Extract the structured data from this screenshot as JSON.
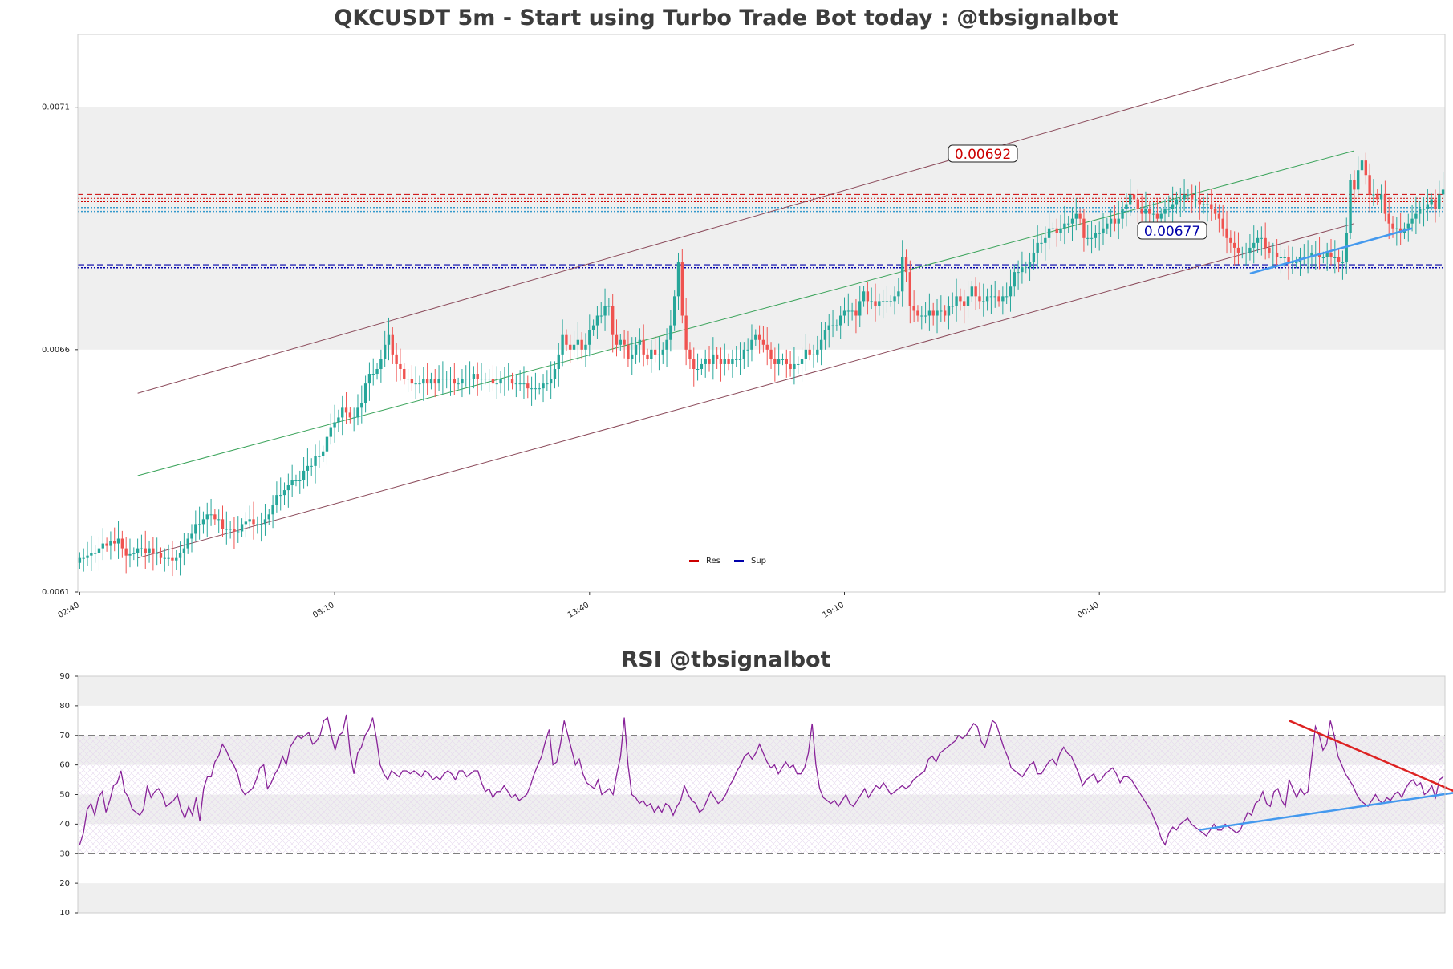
{
  "chart_data": [
    {
      "type": "candlestick",
      "title": "QKCUSDT 5m - Start using Turbo Trade Bot today : @tbsignalbot",
      "ylim": [
        0.0061,
        0.00725
      ],
      "y_ticks": [
        "0.0071",
        "0.0066",
        "0.0061"
      ],
      "y_tick_values": [
        0.0071,
        0.0066,
        0.0061
      ],
      "x_ticks": [
        "02:40",
        "08:10",
        "13:40",
        "19:10",
        "00:40"
      ],
      "x_tick_index": [
        0,
        66,
        132,
        198,
        264
      ],
      "shaded_band": [
        0.0066,
        0.0071
      ],
      "resistance": {
        "label": "0.00692",
        "value": 0.00692,
        "color": "#cc0000"
      },
      "support": {
        "label": "0.00677",
        "value": 0.00677,
        "color": "#0000aa"
      },
      "resistance_levels": [
        0.00692,
        0.006912,
        0.006905
      ],
      "support_levels": [
        0.006893,
        0.006885,
        0.006775,
        0.006769
      ],
      "channel": {
        "start_index": 15,
        "end_index": 330,
        "upper": [
          0.00651,
          0.00723
        ],
        "middle": [
          0.00634,
          0.00701
        ],
        "lower": [
          0.00617,
          0.00686
        ]
      },
      "trendline": {
        "x": [
          303,
          345
        ],
        "y": [
          0.006757,
          0.00685
        ],
        "color": "#4499ee"
      },
      "series": [
        {
          "name": "Res",
          "color": "#cc0000"
        },
        {
          "name": "Sup",
          "color": "#0000aa"
        }
      ],
      "candles_close": [
        0.00617,
        0.00617,
        0.006175,
        0.00618,
        0.00618,
        0.00619,
        0.0062,
        0.006195,
        0.006205,
        0.0062,
        0.00621,
        0.00619,
        0.006175,
        0.006178,
        0.00618,
        0.00619,
        0.00619,
        0.00618,
        0.00619,
        0.00618,
        0.00618,
        0.00617,
        0.00617,
        0.00617,
        0.006165,
        0.00617,
        0.00618,
        0.00619,
        0.00621,
        0.00622,
        0.00624,
        0.00624,
        0.00625,
        0.00626,
        0.00626,
        0.00625,
        0.00625,
        0.00623,
        0.00623,
        0.00623,
        0.006225,
        0.006225,
        0.00624,
        0.006245,
        0.00625,
        0.00624,
        0.00624,
        0.00624,
        0.00625,
        0.00626,
        0.00628,
        0.0063,
        0.0063,
        0.00631,
        0.00632,
        0.00633,
        0.00633,
        0.00633,
        0.00635,
        0.00636,
        0.00636,
        0.00638,
        0.00638,
        0.00639,
        0.00642,
        0.00644,
        0.00645,
        0.00646,
        0.00648,
        0.00647,
        0.00646,
        0.00646,
        0.00648,
        0.00649,
        0.00653,
        0.00655,
        0.00655,
        0.00656,
        0.00658,
        0.00661,
        0.00663,
        0.00659,
        0.00657,
        0.00656,
        0.00654,
        0.00654,
        0.00653,
        0.00653,
        0.00653,
        0.00654,
        0.00653,
        0.00654,
        0.00653,
        0.00654,
        0.00654,
        0.00654,
        0.00654,
        0.00653,
        0.00653,
        0.00654,
        0.00654,
        0.00654,
        0.00655,
        0.00654,
        0.00654,
        0.00654,
        0.00654,
        0.00653,
        0.00653,
        0.00654,
        0.00654,
        0.00654,
        0.00653,
        0.00653,
        0.00653,
        0.00653,
        0.00652,
        0.00652,
        0.00652,
        0.00652,
        0.00653,
        0.00653,
        0.00654,
        0.00656,
        0.00659,
        0.00663,
        0.00661,
        0.0066,
        0.00661,
        0.00662,
        0.0066,
        0.00661,
        0.00664,
        0.00665,
        0.00667,
        0.00667,
        0.00669,
        0.00669,
        0.00663,
        0.00661,
        0.00662,
        0.00661,
        0.00658,
        0.00659,
        0.00661,
        0.00662,
        0.00659,
        0.00658,
        0.0066,
        0.00659,
        0.00659,
        0.0066,
        0.00662,
        0.00665,
        0.00671,
        0.00678,
        0.00667,
        0.0066,
        0.00658,
        0.00656,
        0.00656,
        0.00657,
        0.00658,
        0.00657,
        0.00659,
        0.00658,
        0.00657,
        0.00658,
        0.00657,
        0.00658,
        0.00658,
        0.00658,
        0.0066,
        0.0066,
        0.00662,
        0.00663,
        0.00662,
        0.00661,
        0.0066,
        0.00658,
        0.00657,
        0.00658,
        0.00658,
        0.00657,
        0.00656,
        0.00657,
        0.00657,
        0.00658,
        0.0066,
        0.00659,
        0.00659,
        0.0066,
        0.00662,
        0.00664,
        0.00665,
        0.00665,
        0.00665,
        0.00667,
        0.00668,
        0.00668,
        0.00668,
        0.00667,
        0.0067,
        0.00672,
        0.0067,
        0.0067,
        0.00669,
        0.0067,
        0.0067,
        0.0067,
        0.0067,
        0.00671,
        0.00672,
        0.00679,
        0.00676,
        0.00669,
        0.00668,
        0.00667,
        0.00667,
        0.00667,
        0.00668,
        0.00667,
        0.00668,
        0.00668,
        0.00667,
        0.00669,
        0.00669,
        0.00671,
        0.0067,
        0.00669,
        0.00671,
        0.00673,
        0.00671,
        0.0067,
        0.0067,
        0.00671,
        0.00671,
        0.00671,
        0.0067,
        0.00671,
        0.00671,
        0.00673,
        0.00676,
        0.00676,
        0.00677,
        0.00677,
        0.00678,
        0.0068,
        0.00682,
        0.00682,
        0.00683,
        0.00685,
        0.00685,
        0.00684,
        0.00685,
        0.00686,
        0.00686,
        0.00687,
        0.00688,
        0.00687,
        0.00683,
        0.00683,
        0.00683,
        0.00684,
        0.00684,
        0.00685,
        0.00686,
        0.00687,
        0.00686,
        0.00687,
        0.00689,
        0.0069,
        0.00692,
        0.00691,
        0.00689,
        0.00688,
        0.00689,
        0.00688,
        0.00688,
        0.00687,
        0.00688,
        0.00689,
        0.00689,
        0.0069,
        0.00691,
        0.00691,
        0.00692,
        0.00692,
        0.00691,
        0.00691,
        0.0069,
        0.0069,
        0.0069,
        0.00689,
        0.00688,
        0.00687,
        0.00685,
        0.00683,
        0.00682,
        0.00681,
        0.0068,
        0.0068,
        0.0068,
        0.00681,
        0.00682,
        0.00683,
        0.00683,
        0.00681,
        0.0068,
        0.0068,
        0.00679,
        0.00679,
        0.00679,
        0.00678,
        0.00678,
        0.00678,
        0.00679,
        0.00679,
        0.00679,
        0.0068,
        0.0068,
        0.00679,
        0.00679,
        0.0068,
        0.00679,
        0.00679,
        0.00678,
        0.00678,
        0.00684,
        0.00695,
        0.00693,
        0.00697,
        0.00699,
        0.00696,
        0.00692,
        0.00692,
        0.00691,
        0.00692,
        0.00688,
        0.00686,
        0.00685,
        0.00685,
        0.00684,
        0.00685,
        0.00686,
        0.00687,
        0.00688,
        0.00689,
        0.00689,
        0.0069,
        0.00691,
        0.00689,
        0.00692,
        0.00693
      ]
    },
    {
      "type": "line",
      "title": "RSI @tbsignalbot",
      "ylim": [
        10,
        90
      ],
      "y_ticks": [
        "90",
        "80",
        "70",
        "60",
        "50",
        "40",
        "30",
        "20",
        "10"
      ],
      "y_tick_values": [
        90,
        80,
        70,
        60,
        50,
        40,
        30,
        20,
        10
      ],
      "overbought": 70,
      "oversold": 30,
      "shaded_bands": [
        [
          80,
          90
        ],
        [
          60,
          70
        ],
        [
          40,
          50
        ],
        [
          10,
          20
        ]
      ],
      "hatched_band": [
        30,
        70
      ],
      "line_color": "#882299",
      "trendlines": [
        {
          "x": [
            322,
            368
          ],
          "y": [
            75,
            50
          ],
          "color": "#dd2222"
        },
        {
          "x": [
            298,
            368
          ],
          "y": [
            38,
            51
          ],
          "color": "#4499ee"
        }
      ],
      "values": [
        33,
        37,
        45,
        47,
        43,
        49,
        51,
        44,
        48,
        53,
        54,
        58,
        51,
        49,
        45,
        44,
        43,
        45,
        53,
        49,
        51,
        52,
        50,
        46,
        47,
        48,
        50,
        45,
        42,
        46,
        43,
        49,
        41,
        52,
        56,
        56,
        61,
        63,
        67,
        65,
        62,
        60,
        57,
        52,
        50,
        51,
        52,
        55,
        59,
        60,
        52,
        54,
        57,
        59,
        63,
        60,
        66,
        68,
        70,
        69,
        70,
        71,
        67,
        68,
        70,
        75,
        76,
        70,
        65,
        70,
        71,
        77,
        64,
        57,
        64,
        66,
        70,
        72,
        76,
        69,
        60,
        57,
        55,
        58,
        57,
        56,
        58,
        58,
        57,
        58,
        57,
        56,
        58,
        57,
        55,
        56,
        55,
        57,
        58,
        57,
        55,
        58,
        58,
        56,
        57,
        58,
        58,
        54,
        51,
        52,
        49,
        51,
        51,
        53,
        51,
        49,
        50,
        48,
        49,
        50,
        53,
        57,
        60,
        63,
        68,
        72,
        60,
        61,
        67,
        75,
        70,
        65,
        60,
        62,
        57,
        54,
        53,
        52,
        55,
        50,
        51,
        52,
        50,
        57,
        63,
        76,
        60,
        50,
        49,
        47,
        48,
        46,
        47,
        44,
        46,
        44,
        47,
        46,
        43,
        46,
        48,
        53,
        50,
        48,
        47,
        44,
        45,
        48,
        51,
        49,
        47,
        48,
        50,
        53,
        55,
        58,
        60,
        63,
        64,
        62,
        64,
        67,
        64,
        61,
        59,
        60,
        57,
        59,
        61,
        59,
        60,
        57,
        57,
        59,
        64,
        74,
        60,
        52,
        49,
        48,
        47,
        48,
        46,
        48,
        50,
        47,
        46,
        48,
        50,
        52,
        49,
        51,
        53,
        52,
        54,
        52,
        50,
        51,
        52,
        53,
        52,
        53,
        55,
        56,
        57,
        58,
        62,
        63,
        61,
        64,
        65,
        66,
        67,
        68,
        70,
        69,
        70,
        72,
        74,
        73,
        68,
        66,
        70,
        75,
        74,
        70,
        66,
        63,
        59,
        58,
        57,
        56,
        58,
        60,
        61,
        57,
        57,
        59,
        61,
        62,
        60,
        64,
        66,
        64,
        63,
        60,
        57,
        53,
        55,
        56,
        57,
        54,
        55,
        57,
        58,
        59,
        57,
        54,
        56,
        56,
        55,
        53,
        51,
        49,
        47,
        45,
        42,
        39,
        35,
        33,
        37,
        39,
        38,
        40,
        41,
        42,
        40,
        39,
        38,
        37,
        36,
        38,
        40,
        38,
        38,
        40,
        39,
        38,
        37,
        38,
        41,
        44,
        43,
        47,
        48,
        51,
        47,
        46,
        51,
        52,
        48,
        46,
        55,
        52,
        49,
        52,
        50,
        51,
        62,
        73,
        70,
        65,
        67,
        75,
        70,
        63,
        60,
        57,
        55,
        53,
        50,
        48,
        47,
        46,
        48,
        50,
        48,
        47,
        49,
        48,
        50,
        51,
        49,
        52,
        54,
        55,
        53,
        54,
        50,
        51,
        53,
        49,
        55,
        56
      ]
    }
  ],
  "legend": {
    "res_label": "Res",
    "sup_label": "Sup"
  },
  "colors": {
    "up": "#26a69a",
    "down": "#ef5350",
    "band": "#efefef",
    "channel": "#8b4a5a",
    "midline": "#3aa35a",
    "resistance": "#cc0000",
    "support": "#0000aa",
    "rsi": "#882299"
  }
}
